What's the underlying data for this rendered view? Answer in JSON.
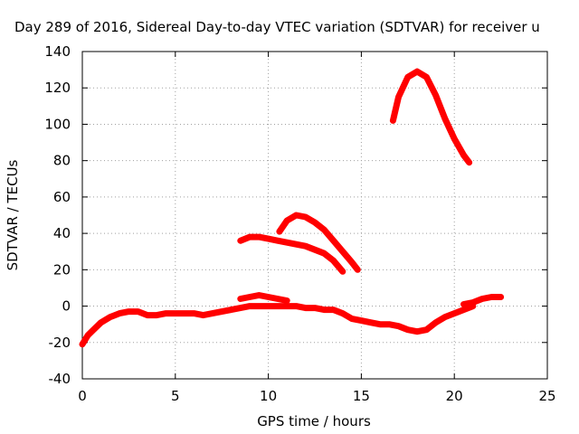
{
  "chart_data": {
    "type": "line",
    "title": "Day 289 of 2016, Sidereal Day-to-day VTEC variation (SDTVAR) for receiver u",
    "xlabel": "GPS time / hours",
    "ylabel": "SDTVAR / TECUs",
    "xlim": [
      0,
      25
    ],
    "ylim": [
      -40,
      140
    ],
    "xticks": [
      0,
      5,
      10,
      15,
      20,
      25
    ],
    "yticks": [
      -40,
      -20,
      0,
      20,
      40,
      60,
      80,
      100,
      120,
      140
    ],
    "grid": true,
    "legend": "none",
    "color": "#ff0000",
    "series": [
      {
        "x": [
          0,
          0.3,
          0.6,
          1.0,
          1.5,
          2.0,
          2.5,
          3.0,
          3.5,
          4.0,
          4.5,
          5.0,
          5.5,
          6.0,
          6.5,
          7.0,
          7.5,
          8.0,
          8.5,
          9.0,
          9.5,
          10.0,
          10.5,
          11.0,
          11.5,
          12.0,
          12.5,
          13.0,
          13.5,
          14.0,
          14.5,
          15.0,
          15.5,
          16.0,
          16.5,
          17.0,
          17.5,
          18.0,
          18.5,
          19.0,
          19.5,
          20.0,
          20.5,
          21.0
        ],
        "y": [
          -21,
          -16,
          -13,
          -9,
          -6,
          -4,
          -3,
          -3,
          -5,
          -5,
          -4,
          -4,
          -4,
          -4,
          -5,
          -4,
          -3,
          -2,
          -1,
          0,
          0,
          0,
          0,
          0,
          0,
          -1,
          -1,
          -2,
          -2,
          -4,
          -7,
          -8,
          -9,
          -10,
          -10,
          -11,
          -13,
          -14,
          -13,
          -9,
          -6,
          -4,
          -2,
          0
        ]
      },
      {
        "x": [
          8.5,
          9.0,
          9.5,
          10.0,
          10.5,
          11.0
        ],
        "y": [
          4,
          5,
          6,
          5,
          4,
          3
        ]
      },
      {
        "x": [
          20.5,
          21.0,
          21.5,
          22.0,
          22.5
        ],
        "y": [
          1,
          2,
          4,
          5,
          5
        ]
      },
      {
        "x": [
          8.5,
          9.0,
          9.5,
          10.0,
          10.5,
          11.0,
          11.5,
          12.0,
          12.5,
          13.0,
          13.5,
          14.0
        ],
        "y": [
          36,
          38,
          38,
          37,
          36,
          35,
          34,
          33,
          31,
          29,
          25,
          19
        ]
      },
      {
        "x": [
          10.6,
          11.0,
          11.5,
          12.0,
          12.5,
          13.0,
          13.5,
          14.0,
          14.5,
          14.8
        ],
        "y": [
          41,
          47,
          50,
          49,
          46,
          42,
          36,
          30,
          24,
          20
        ]
      },
      {
        "x": [
          16.7,
          17.0,
          17.5,
          18.0,
          18.5,
          19.0,
          19.5,
          20.0,
          20.5,
          20.8
        ],
        "y": [
          102,
          115,
          126,
          129,
          126,
          116,
          103,
          92,
          83,
          79
        ]
      }
    ]
  }
}
